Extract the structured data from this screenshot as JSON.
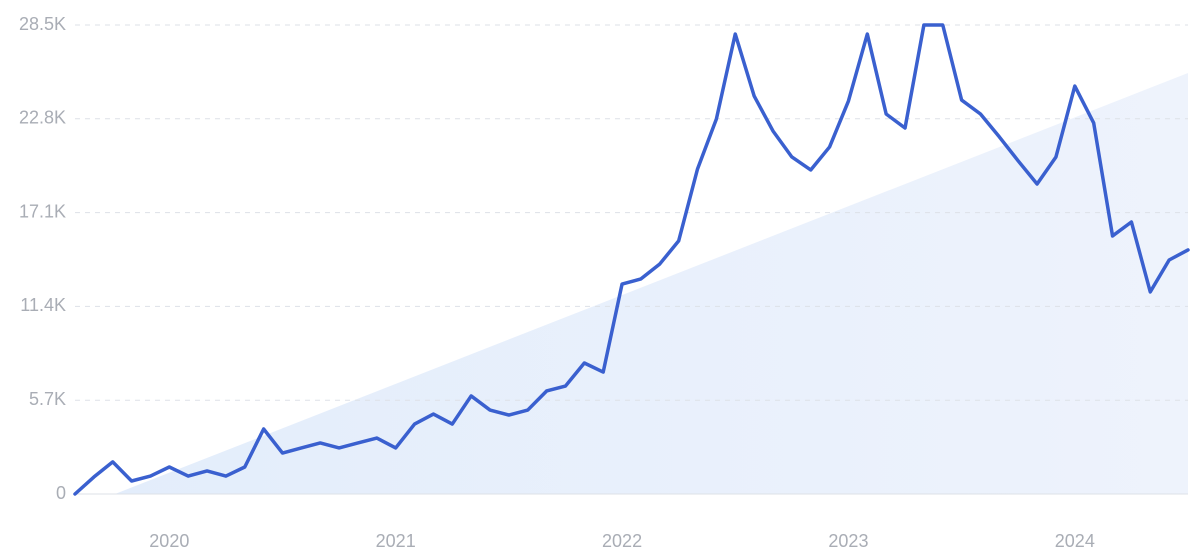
{
  "chart_data": {
    "type": "line",
    "categories": [
      null,
      null,
      null,
      null,
      null,
      "2020",
      null,
      null,
      null,
      null,
      null,
      null,
      null,
      null,
      null,
      null,
      null,
      "2021",
      null,
      null,
      null,
      null,
      null,
      null,
      null,
      null,
      null,
      null,
      null,
      "2022",
      null,
      null,
      null,
      null,
      null,
      null,
      null,
      null,
      null,
      null,
      null,
      "2023",
      null,
      null,
      null,
      null,
      null,
      null,
      null,
      null,
      null,
      null,
      null,
      "2024",
      null,
      null,
      null,
      null,
      null,
      null
    ],
    "values": [
      0,
      1030,
      1950,
      790,
      1090,
      1640,
      1090,
      1400,
      1090,
      1640,
      3950,
      2490,
      2800,
      3100,
      2800,
      3100,
      3400,
      2800,
      4250,
      4860,
      4250,
      5960,
      5100,
      4800,
      5100,
      6260,
      6560,
      7960,
      7410,
      12760,
      13070,
      13980,
      15380,
      19750,
      22790,
      27950,
      24190,
      22060,
      20480,
      19690,
      21090,
      23880,
      27950,
      23090,
      22240,
      28500,
      28500,
      23940,
      23090,
      21700,
      20240,
      18840,
      20480,
      24790,
      22550,
      15680,
      16530,
      12280,
      14220,
      14830
    ],
    "color": "#3a60cf",
    "ylim": [
      0,
      28500
    ],
    "yticks": [
      0,
      {
        "value": 5700,
        "label": "5.7K"
      },
      {
        "value": 11400,
        "label": "11.4K"
      },
      {
        "value": 17100,
        "label": "17.1K"
      },
      {
        "value": 22800,
        "label": "22.8K"
      },
      {
        "value": 28500,
        "label": "28.5K"
      }
    ],
    "grid": true
  }
}
